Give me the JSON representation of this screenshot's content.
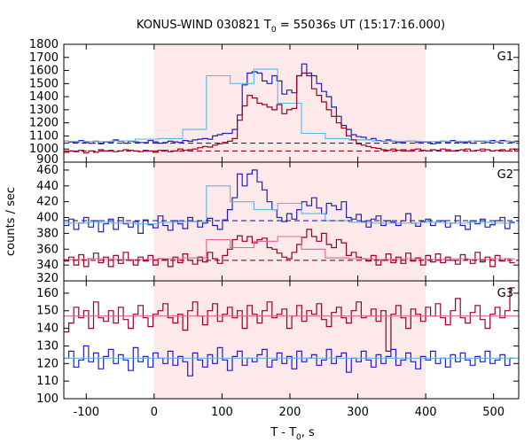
{
  "chart_data": {
    "type": "line",
    "title": "KONUS-WIND 030821 T",
    "title_sub": "0",
    "title_rest": " = 55036s UT (15:17:16.000)",
    "xlabel": "T - T",
    "xlabel_sub": "0",
    "xlabel_rest": ", s",
    "ylabel": "counts / sec",
    "xlim": [
      -133,
      537
    ],
    "x_ticks": [
      -100,
      0,
      100,
      200,
      300,
      400,
      500
    ],
    "highlight_interval": [
      0,
      400
    ],
    "colors": {
      "blue": "#2020b8",
      "red": "#9a0020",
      "blue_model": "#5ab8e8",
      "red_model": "#e060a0",
      "shade": "#fde8ea"
    },
    "panels": [
      {
        "label": "G1",
        "ylim": [
          900,
          1800
        ],
        "y_ticks": [
          900,
          1000,
          1100,
          1200,
          1300,
          1400,
          1500,
          1600,
          1700,
          1800
        ],
        "series": [
          {
            "color": "blue",
            "kind": "step",
            "x_step": 7.3,
            "values": [
              1060,
              1055,
              1050,
              1065,
              1050,
              1045,
              1060,
              1040,
              1055,
              1050,
              1070,
              1060,
              1045,
              1060,
              1055,
              1050,
              1050,
              1065,
              1055,
              1045,
              1050,
              1060,
              1055,
              1050,
              1065,
              1060,
              1070,
              1075,
              1080,
              1075,
              1100,
              1110,
              1120,
              1120,
              1150,
              1260,
              1490,
              1580,
              1590,
              1580,
              1520,
              1500,
              1560,
              1520,
              1420,
              1450,
              1430,
              1560,
              1650,
              1580,
              1560,
              1500,
              1440,
              1400,
              1320,
              1250,
              1180,
              1150,
              1110,
              1095,
              1090,
              1070,
              1080,
              1065,
              1060,
              1070,
              1060,
              1050,
              1055,
              1060,
              1060,
              1050,
              1055,
              1055,
              1040,
              1050,
              1060,
              1050,
              1065,
              1055,
              1050,
              1055,
              1045,
              1060,
              1060,
              1050,
              1065,
              1055,
              1065,
              1060,
              1050,
              1060
            ]
          },
          {
            "color": "blue",
            "kind": "step",
            "x_step": 35,
            "values": [
              1060,
              1058,
              1062,
              1075,
              1080,
              1150,
              1560,
              1500,
              1610,
              1350,
              1120,
              1080,
              1070,
              1062,
              1060,
              1058,
              1060,
              1062,
              1058
            ]
          },
          {
            "color": "blue",
            "kind": "dashed",
            "values": [
              1045
            ]
          },
          {
            "color": "red",
            "kind": "step",
            "x_step": 7.3,
            "values": [
              975,
              985,
              980,
              990,
              970,
              985,
              975,
              995,
              985,
              990,
              980,
              985,
              995,
              990,
              985,
              980,
              990,
              985,
              975,
              990,
              990,
              980,
              985,
              1000,
              990,
              995,
              1000,
              1010,
              1020,
              1015,
              1030,
              1040,
              1050,
              1060,
              1080,
              1220,
              1330,
              1410,
              1390,
              1350,
              1340,
              1320,
              1300,
              1340,
              1270,
              1300,
              1310,
              1560,
              1580,
              1560,
              1460,
              1410,
              1360,
              1300,
              1250,
              1200,
              1160,
              1100,
              1070,
              1040,
              1030,
              1020,
              1010,
              1005,
              995,
              990,
              1000,
              990,
              995,
              985,
              995,
              1000,
              990,
              985,
              995,
              990,
              1000,
              995,
              985,
              990,
              995,
              1000,
              985,
              990,
              1000,
              995,
              985,
              990,
              995,
              985,
              1000,
              985,
              990
            ]
          },
          {
            "color": "red",
            "kind": "dashed",
            "values": [
              985
            ]
          }
        ]
      },
      {
        "label": "G2",
        "ylim": [
          320,
          470
        ],
        "y_ticks": [
          320,
          340,
          360,
          380,
          400,
          420,
          440,
          460
        ],
        "series": [
          {
            "color": "blue",
            "kind": "step",
            "x_step": 7.3,
            "values": [
              390,
              398,
              385,
              393,
              400,
              388,
              396,
              382,
              392,
              398,
              385,
              400,
              392,
              388,
              395,
              380,
              397,
              391,
              387,
              402,
              390,
              384,
              396,
              392,
              386,
              400,
              395,
              388,
              393,
              399,
              390,
              385,
              397,
              410,
              425,
              455,
              440,
              455,
              460,
              445,
              435,
              420,
              410,
              400,
              395,
              405,
              398,
              410,
              420,
              415,
              425,
              412,
              405,
              418,
              415,
              410,
              420,
              400,
              398,
              404,
              395,
              388,
              398,
              402,
              390,
              396,
              394,
              390,
              396,
              405,
              393,
              389,
              395,
              398,
              390,
              394,
              396,
              388,
              393,
              402,
              390,
              385,
              396,
              392,
              398,
              388,
              391,
              396,
              400,
              386,
              394
            ]
          },
          {
            "color": "blue",
            "kind": "step",
            "x_step": 35,
            "values": [
              393,
              394,
              393,
              392,
              394,
              395,
              440,
              420,
              410,
              418,
              405,
              396,
              394,
              393,
              393,
              394,
              393,
              394,
              393
            ]
          },
          {
            "color": "blue",
            "kind": "dashed",
            "values": [
              396
            ]
          },
          {
            "color": "red",
            "kind": "step",
            "x_step": 7.3,
            "values": [
              345,
              350,
              340,
              353,
              338,
              348,
              355,
              343,
              350,
              338,
              352,
              342,
              356,
              346,
              340,
              350,
              345,
              352,
              340,
              348,
              347,
              338,
              350,
              343,
              354,
              346,
              341,
              350,
              344,
              356,
              348,
              342,
              352,
              360,
              372,
              377,
              370,
              376,
              368,
              372,
              374,
              362,
              360,
              355,
              350,
              348,
              356,
              366,
              375,
              385,
              376,
              370,
              380,
              366,
              362,
              372,
              368,
              352,
              356,
              350,
              348,
              345,
              352,
              340,
              346,
              354,
              343,
              350,
              342,
              355,
              345,
              349,
              340,
              352,
              344,
              354,
              343,
              350,
              346,
              341,
              353,
              347,
              342,
              356,
              344,
              350,
              338,
              352,
              345,
              348,
              343
            ]
          },
          {
            "color": "red",
            "kind": "step",
            "x_step": 35,
            "values": [
              347,
              348,
              347,
              347,
              348,
              349,
              372,
              362,
              370,
              376,
              360,
              349,
              348,
              347,
              348,
              347,
              348,
              347,
              348
            ]
          },
          {
            "color": "red",
            "kind": "dashed",
            "values": [
              346
            ]
          }
        ]
      },
      {
        "label": "G3",
        "ylim": [
          100,
          167
        ],
        "y_ticks": [
          100,
          110,
          120,
          130,
          140,
          150,
          160
        ],
        "series": [
          {
            "color": "red",
            "kind": "step",
            "x_step": 7.3,
            "values": [
              138,
              143,
              152,
              146,
              150,
              140,
              155,
              146,
              144,
              150,
              143,
              152,
              145,
              140,
              148,
              153,
              146,
              141,
              148,
              150,
              154,
              146,
              143,
              148,
              139,
              150,
              155,
              147,
              142,
              150,
              154,
              144,
              148,
              152,
              146,
              150,
              140,
              153,
              148,
              143,
              150,
              155,
              146,
              148,
              151,
              140,
              147,
              153,
              144,
              150,
              148,
              154,
              145,
              141,
              149,
              152,
              146,
              143,
              150,
              155,
              146,
              147,
              151,
              144,
              150,
              127,
              148,
              153,
              146,
              140,
              151,
              148,
              144,
              152,
              147,
              154,
              146,
              142,
              150,
              157,
              146,
              143,
              149,
              153,
              145,
              140,
              148,
              152,
              146,
              150,
              163
            ]
          },
          {
            "color": "red",
            "kind": "model",
            "values": [
              147
            ]
          },
          {
            "color": "blue",
            "kind": "step",
            "x_step": 7.3,
            "values": [
              123,
              127,
              118,
              122,
              130,
              121,
              126,
              117,
              124,
              128,
              120,
              125,
              122,
              116,
              129,
              121,
              124,
              118,
              126,
              123,
              120,
              127,
              119,
              124,
              121,
              113,
              126,
              122,
              118,
              125,
              120,
              129,
              122,
              116,
              124,
              127,
              119,
              123,
              121,
              125,
              128,
              118,
              122,
              126,
              120,
              124,
              117,
              127,
              121,
              123,
              125,
              119,
              122,
              128,
              120,
              124,
              126,
              115,
              123,
              121,
              127,
              122,
              118,
              125,
              120,
              124,
              128,
              119,
              122,
              126,
              121,
              117,
              124,
              122,
              127,
              120,
              123,
              118,
              125,
              121,
              126,
              122,
              119,
              124,
              121,
              127,
              120,
              122,
              125,
              119,
              123
            ]
          },
          {
            "color": "blue",
            "kind": "model",
            "values": [
              123
            ]
          }
        ]
      }
    ]
  }
}
